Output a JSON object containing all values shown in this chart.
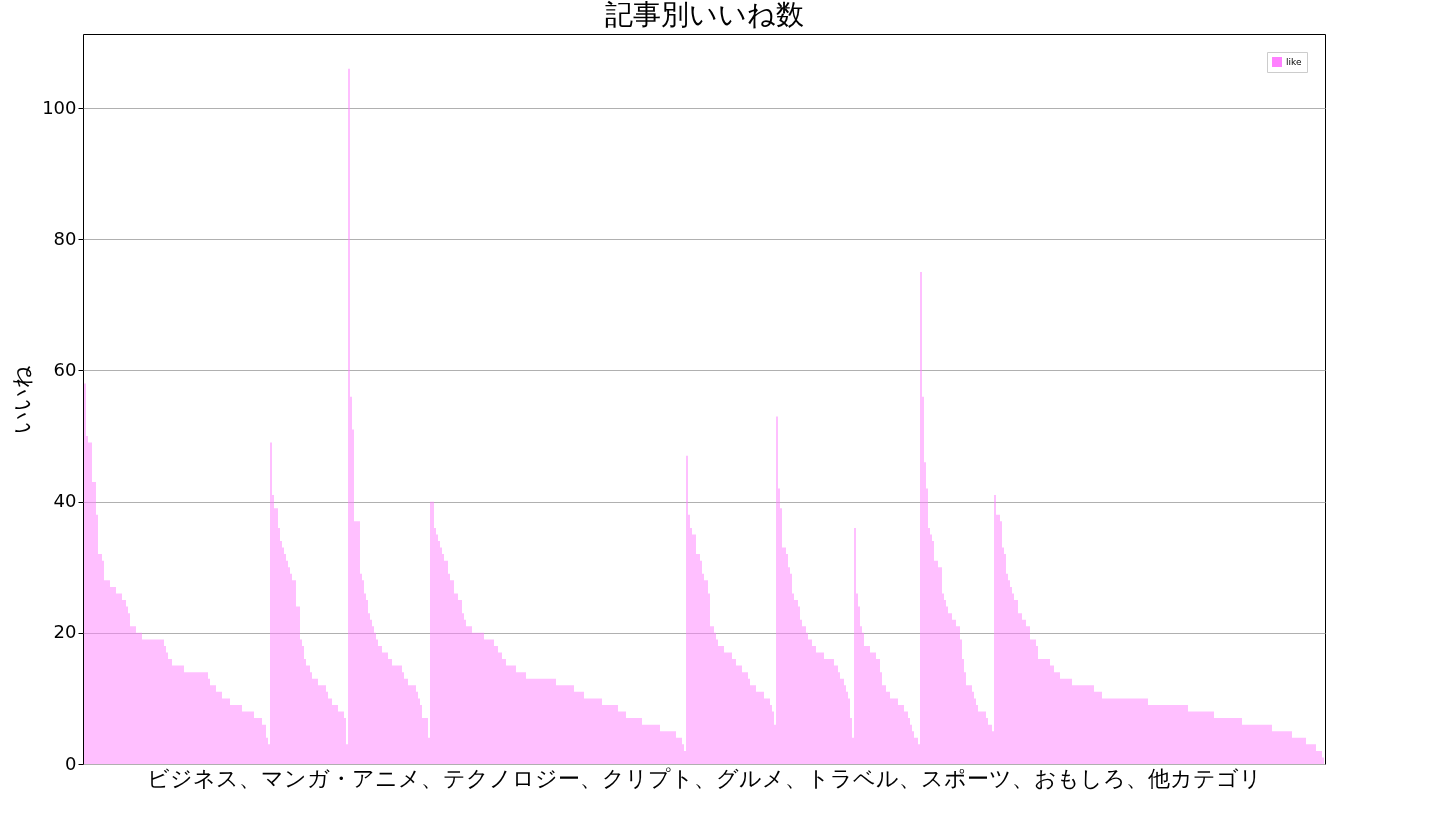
{
  "chart_data": {
    "type": "bar",
    "title": "記事別いいね数",
    "xlabel": "ビジネス、マンガ・アニメ、テクノロジー、クリプト、グルメ、トラベル、スポーツ、おもしろ、他カテゴリ",
    "ylabel": "いいね",
    "categories": [
      null,
      null,
      null,
      null,
      null,
      null,
      null,
      null,
      null,
      null,
      null,
      null,
      null,
      null,
      null,
      null,
      null,
      null,
      null,
      null,
      null,
      null,
      null,
      null,
      null,
      null,
      null,
      null,
      null,
      null,
      null,
      null,
      null,
      null,
      null,
      null,
      null,
      null,
      null,
      null,
      null,
      null,
      null,
      null,
      null,
      null,
      null,
      null,
      null,
      null,
      null,
      null,
      null,
      null,
      null,
      null,
      null,
      null,
      null,
      null,
      null,
      null,
      null,
      null,
      null,
      null,
      null,
      null,
      null,
      null,
      null,
      null,
      null,
      null,
      null,
      null,
      null,
      null,
      null,
      null,
      null,
      null,
      null,
      null,
      null,
      null,
      null,
      null,
      null,
      null,
      null,
      null,
      null,
      null,
      null,
      null,
      null,
      null,
      null,
      null,
      null,
      null,
      null,
      null,
      null,
      null,
      null,
      null,
      null,
      null,
      null,
      null,
      null,
      null,
      null,
      null,
      null,
      null,
      null,
      null,
      null,
      null,
      null,
      null,
      null,
      null,
      null,
      null,
      null,
      null,
      null,
      null,
      null,
      null,
      null,
      null,
      null,
      null,
      null,
      null,
      null,
      null,
      null,
      null,
      null,
      null,
      null,
      null,
      null,
      null,
      null,
      null,
      null,
      null,
      null,
      null,
      null,
      null,
      null,
      null,
      null,
      null,
      null,
      null,
      null,
      null,
      null,
      null,
      null,
      null,
      null,
      null,
      null,
      null,
      null,
      null,
      null,
      null,
      null,
      null,
      null,
      null,
      null,
      null,
      null,
      null,
      null,
      null,
      null,
      null,
      null,
      null,
      null,
      null,
      null,
      null,
      null,
      null,
      null,
      null,
      null,
      null,
      null,
      null,
      null,
      null,
      null,
      null,
      null,
      null,
      null,
      null,
      null,
      null,
      null,
      null,
      null,
      null,
      null,
      null,
      null,
      null,
      null,
      null,
      null,
      null,
      null,
      null,
      null,
      null,
      null,
      null,
      null,
      null,
      null,
      null,
      null,
      null,
      null,
      null,
      null,
      null,
      null,
      null,
      null,
      null,
      null,
      null,
      null,
      null,
      null,
      null,
      null,
      null,
      null,
      null,
      null,
      null,
      null,
      null,
      null,
      null,
      null,
      null,
      null,
      null,
      null,
      null,
      null,
      null,
      null,
      null,
      null,
      null,
      null,
      null,
      null,
      null,
      null,
      null,
      null,
      null,
      null,
      null,
      null,
      null,
      null,
      null,
      null,
      null,
      null,
      null,
      null,
      null,
      null,
      null,
      null,
      null,
      null,
      null,
      null,
      null,
      null,
      null,
      null,
      null,
      null,
      null,
      null,
      null,
      null,
      null,
      null,
      null,
      null,
      null,
      null,
      null,
      null,
      null,
      null,
      null,
      null,
      null,
      null,
      null,
      null,
      null,
      null,
      null,
      null,
      null,
      null,
      null,
      null,
      null,
      null,
      null,
      null,
      null,
      null,
      null,
      null,
      null,
      null,
      null,
      null,
      null,
      null,
      null,
      null,
      null,
      null,
      null,
      null,
      null,
      null,
      null,
      null,
      null,
      null,
      null,
      null,
      null,
      null,
      null,
      null,
      null,
      null,
      null,
      null,
      null,
      null,
      null,
      null,
      null,
      null,
      null,
      null,
      null,
      null,
      null,
      null,
      null,
      null,
      null,
      null,
      null,
      null,
      null,
      null,
      null,
      null,
      null,
      null,
      null,
      null,
      null,
      null,
      null,
      null,
      null,
      null,
      null,
      null,
      null,
      null,
      null,
      null,
      null,
      null,
      null,
      null,
      null,
      null,
      null,
      null,
      null,
      null,
      null,
      null,
      null,
      null,
      null,
      null,
      null,
      null,
      null,
      null,
      null,
      null,
      null,
      null,
      null,
      null,
      null,
      null,
      null,
      null,
      null,
      null,
      null,
      null,
      null,
      null,
      null,
      null,
      null,
      null,
      null,
      null,
      null,
      null,
      null,
      null,
      null,
      null,
      null,
      null,
      null,
      null,
      null,
      null,
      null,
      null,
      null,
      null,
      null,
      null,
      null,
      null,
      null,
      null,
      null,
      null,
      null,
      null,
      null,
      null,
      null,
      null,
      null,
      null,
      null,
      null,
      null,
      null,
      null,
      null,
      null,
      null,
      null,
      null,
      null,
      null,
      null,
      null,
      null,
      null,
      null,
      null,
      null,
      null,
      null,
      null,
      null,
      null,
      null,
      null,
      null,
      null,
      null,
      null,
      null,
      null,
      null,
      null,
      null,
      null,
      null,
      null,
      null,
      null,
      null,
      null,
      null,
      null,
      null,
      null,
      null,
      null,
      null,
      null,
      null,
      null,
      null,
      null,
      null,
      null,
      null,
      null,
      null,
      null,
      null,
      null,
      null,
      null,
      null,
      null,
      null,
      null,
      null,
      null,
      null,
      null,
      null,
      null,
      null,
      null,
      null,
      null,
      null,
      null,
      null,
      null,
      null,
      null,
      null,
      null,
      null,
      null,
      null,
      null,
      null,
      null,
      null,
      null,
      null,
      null,
      null,
      null,
      null,
      null,
      null,
      null,
      null,
      null,
      null,
      null,
      null,
      null,
      null,
      null,
      null,
      null,
      null,
      null,
      null,
      null,
      null,
      null,
      null,
      null,
      null,
      null,
      null,
      null,
      null,
      null,
      null,
      null,
      null,
      null,
      null,
      null,
      null,
      null,
      null,
      null,
      null
    ],
    "series": [
      {
        "name": "like",
        "color": "#ff80ff",
        "values": [
          58,
          50,
          49,
          49,
          43,
          43,
          38,
          32,
          32,
          31,
          28,
          28,
          28,
          27,
          27,
          27,
          26,
          26,
          26,
          25,
          25,
          24,
          23,
          21,
          21,
          21,
          20,
          20,
          20,
          19,
          19,
          19,
          19,
          19,
          19,
          19,
          19,
          19,
          19,
          19,
          18,
          17,
          16,
          16,
          15,
          15,
          15,
          15,
          15,
          15,
          14,
          14,
          14,
          14,
          14,
          14,
          14,
          14,
          14,
          14,
          14,
          14,
          13,
          12,
          12,
          12,
          11,
          11,
          11,
          10,
          10,
          10,
          10,
          9,
          9,
          9,
          9,
          9,
          9,
          8,
          8,
          8,
          8,
          8,
          8,
          7,
          7,
          7,
          7,
          6,
          6,
          4,
          3,
          49,
          41,
          39,
          39,
          36,
          34,
          33,
          32,
          31,
          30,
          29,
          28,
          28,
          24,
          24,
          19,
          18,
          16,
          15,
          15,
          14,
          13,
          13,
          13,
          12,
          12,
          12,
          12,
          11,
          10,
          10,
          9,
          9,
          9,
          8,
          8,
          8,
          7,
          3,
          106,
          56,
          51,
          37,
          37,
          37,
          29,
          28,
          26,
          25,
          23,
          22,
          21,
          20,
          19,
          18,
          18,
          17,
          17,
          17,
          16,
          16,
          15,
          15,
          15,
          15,
          15,
          14,
          13,
          13,
          12,
          12,
          12,
          12,
          11,
          10,
          9,
          7,
          7,
          7,
          4,
          40,
          40,
          36,
          35,
          34,
          33,
          32,
          31,
          31,
          29,
          28,
          28,
          26,
          26,
          25,
          25,
          23,
          22,
          21,
          21,
          21,
          20,
          20,
          20,
          20,
          20,
          20,
          19,
          19,
          19,
          19,
          19,
          18,
          18,
          17,
          17,
          16,
          16,
          15,
          15,
          15,
          15,
          15,
          14,
          14,
          14,
          14,
          14,
          13,
          13,
          13,
          13,
          13,
          13,
          13,
          13,
          13,
          13,
          13,
          13,
          13,
          13,
          13,
          12,
          12,
          12,
          12,
          12,
          12,
          12,
          12,
          12,
          11,
          11,
          11,
          11,
          11,
          10,
          10,
          10,
          10,
          10,
          10,
          10,
          10,
          10,
          9,
          9,
          9,
          9,
          9,
          9,
          9,
          9,
          8,
          8,
          8,
          8,
          7,
          7,
          7,
          7,
          7,
          7,
          7,
          7,
          6,
          6,
          6,
          6,
          6,
          6,
          6,
          6,
          6,
          5,
          5,
          5,
          5,
          5,
          5,
          5,
          5,
          4,
          4,
          4,
          3,
          2,
          47,
          38,
          36,
          35,
          35,
          32,
          32,
          31,
          29,
          28,
          28,
          26,
          21,
          21,
          20,
          19,
          18,
          18,
          18,
          17,
          17,
          17,
          17,
          16,
          16,
          15,
          15,
          15,
          14,
          14,
          14,
          13,
          12,
          12,
          12,
          11,
          11,
          11,
          11,
          10,
          10,
          10,
          9,
          8,
          6,
          53,
          42,
          39,
          33,
          33,
          32,
          30,
          29,
          26,
          25,
          25,
          24,
          22,
          21,
          21,
          20,
          19,
          19,
          18,
          18,
          17,
          17,
          17,
          17,
          16,
          16,
          16,
          16,
          16,
          15,
          15,
          14,
          13,
          13,
          12,
          11,
          10,
          7,
          4,
          36,
          26,
          24,
          21,
          20,
          18,
          18,
          18,
          17,
          17,
          17,
          16,
          16,
          14,
          12,
          12,
          11,
          11,
          10,
          10,
          10,
          10,
          9,
          9,
          9,
          8,
          8,
          7,
          6,
          5,
          4,
          4,
          3,
          75,
          56,
          46,
          42,
          36,
          35,
          34,
          31,
          31,
          30,
          30,
          26,
          25,
          24,
          23,
          23,
          22,
          22,
          21,
          21,
          19,
          16,
          14,
          12,
          12,
          12,
          11,
          10,
          9,
          8,
          8,
          8,
          8,
          7,
          6,
          6,
          5,
          41,
          38,
          38,
          37,
          33,
          32,
          29,
          28,
          27,
          26,
          25,
          25,
          23,
          23,
          22,
          22,
          21,
          21,
          19,
          19,
          19,
          18,
          16,
          16,
          16,
          16,
          16,
          16,
          15,
          15,
          14,
          14,
          14,
          13,
          13,
          13,
          13,
          13,
          13,
          12,
          12,
          12,
          12,
          12,
          12,
          12,
          12,
          12,
          12,
          12,
          11,
          11,
          11,
          11,
          10,
          10,
          10,
          10,
          10,
          10,
          10,
          10,
          10,
          10,
          10,
          10,
          10,
          10,
          10,
          10,
          10,
          10,
          10,
          10,
          10,
          10,
          10,
          9,
          9,
          9,
          9,
          9,
          9,
          9,
          9,
          9,
          9,
          9,
          9,
          9,
          9,
          9,
          9,
          9,
          9,
          9,
          9,
          8,
          8,
          8,
          8,
          8,
          8,
          8,
          8,
          8,
          8,
          8,
          8,
          8,
          7,
          7,
          7,
          7,
          7,
          7,
          7,
          7,
          7,
          7,
          7,
          7,
          7,
          7,
          6,
          6,
          6,
          6,
          6,
          6,
          6,
          6,
          6,
          6,
          6,
          6,
          6,
          6,
          6,
          5,
          5,
          5,
          5,
          5,
          5,
          5,
          5,
          5,
          5,
          4,
          4,
          4,
          4,
          4,
          4,
          4,
          3,
          3,
          3,
          3,
          3,
          2,
          2,
          2,
          1
        ]
      }
    ],
    "ylim": [
      0,
      111.3
    ],
    "yticks": [
      0,
      20,
      40,
      60,
      80,
      100
    ],
    "grid": "y",
    "legend": "top right",
    "tick_labels": "y"
  }
}
